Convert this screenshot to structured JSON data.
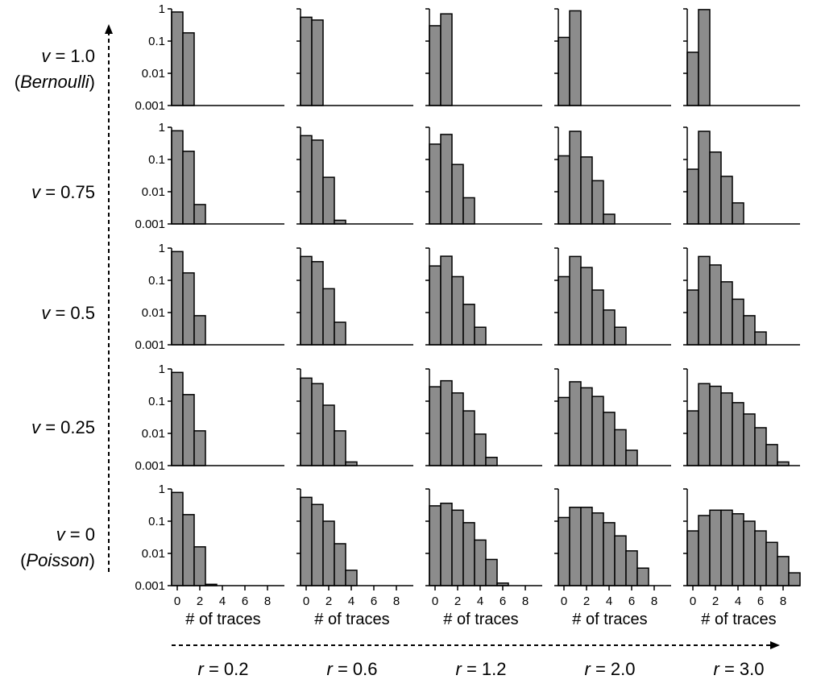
{
  "chart_data": {
    "type": "bar",
    "layout": "grid of histograms (5 rows x 5 columns)",
    "yscale": "log",
    "ylim": [
      0.001,
      1
    ],
    "ytick_labels": [
      "1",
      "0.1",
      "0.01",
      "0.001"
    ],
    "xlim": [
      -0.5,
      9.5
    ],
    "xtick_labels": [
      "0",
      "2",
      "4",
      "6",
      "8"
    ],
    "xlabel": "# of traces",
    "x": [
      0,
      1,
      2,
      3,
      4,
      5,
      6,
      7,
      8,
      9
    ],
    "bar_color": "#8c8c8c",
    "rows": [
      {
        "label_prefix": "v",
        "label_value": " = 1.0",
        "sublabel": "Bernoulli"
      },
      {
        "label_prefix": "v",
        "label_value": " = 0.75",
        "sublabel": ""
      },
      {
        "label_prefix": "v",
        "label_value": " = 0.5",
        "sublabel": ""
      },
      {
        "label_prefix": "v",
        "label_value": " = 0.25",
        "sublabel": ""
      },
      {
        "label_prefix": "v",
        "label_value": " = 0",
        "sublabel": "Poisson"
      }
    ],
    "columns": [
      {
        "label_prefix": "r",
        "label_value": " = 0.2"
      },
      {
        "label_prefix": "r",
        "label_value": " = 0.6"
      },
      {
        "label_prefix": "r",
        "label_value": " = 1.2"
      },
      {
        "label_prefix": "r",
        "label_value": " = 2.0"
      },
      {
        "label_prefix": "r",
        "label_value": " = 3.0"
      }
    ],
    "values": [
      [
        [
          0.8,
          0.18
        ],
        [
          0.55,
          0.45
        ],
        [
          0.3,
          0.7
        ],
        [
          0.13,
          0.87
        ],
        [
          0.045,
          0.95
        ]
      ],
      [
        [
          0.78,
          0.18,
          0.004
        ],
        [
          0.55,
          0.4,
          0.028,
          0.0013
        ],
        [
          0.3,
          0.6,
          0.07,
          0.0065
        ],
        [
          0.13,
          0.75,
          0.12,
          0.022,
          0.002
        ],
        [
          0.05,
          0.75,
          0.17,
          0.03,
          0.0045
        ]
      ],
      [
        [
          0.78,
          0.17,
          0.008
        ],
        [
          0.55,
          0.38,
          0.055,
          0.005
        ],
        [
          0.28,
          0.56,
          0.13,
          0.018,
          0.0035
        ],
        [
          0.13,
          0.55,
          0.25,
          0.05,
          0.012,
          0.0035
        ],
        [
          0.05,
          0.55,
          0.3,
          0.09,
          0.026,
          0.008,
          0.0025
        ]
      ],
      [
        [
          0.78,
          0.16,
          0.012
        ],
        [
          0.52,
          0.35,
          0.075,
          0.012,
          0.0013
        ],
        [
          0.28,
          0.43,
          0.18,
          0.05,
          0.0095,
          0.0018
        ],
        [
          0.13,
          0.4,
          0.26,
          0.14,
          0.045,
          0.013,
          0.003
        ],
        [
          0.05,
          0.35,
          0.29,
          0.18,
          0.09,
          0.04,
          0.015,
          0.0045,
          0.0013
        ]
      ],
      [
        [
          0.78,
          0.16,
          0.016,
          0.0011
        ],
        [
          0.55,
          0.33,
          0.1,
          0.02,
          0.003
        ],
        [
          0.3,
          0.36,
          0.22,
          0.09,
          0.026,
          0.0065,
          0.0012
        ],
        [
          0.13,
          0.27,
          0.27,
          0.18,
          0.09,
          0.035,
          0.012,
          0.0035
        ],
        [
          0.05,
          0.15,
          0.22,
          0.22,
          0.17,
          0.1,
          0.05,
          0.022,
          0.008,
          0.0025
        ]
      ]
    ]
  }
}
